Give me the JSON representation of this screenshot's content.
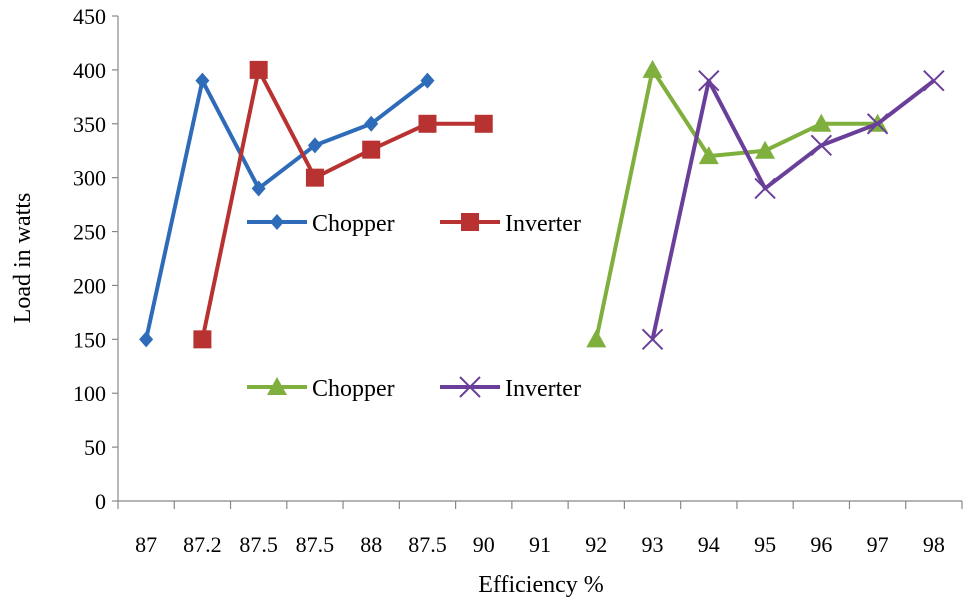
{
  "chart_data": {
    "type": "line",
    "title": "",
    "xlabel": "Efficiency %",
    "ylabel": "Load in watts",
    "categories": [
      "87",
      "87.2",
      "87.5",
      "87.5",
      "88",
      "87.5",
      "90",
      "91",
      "92",
      "93",
      "94",
      "95",
      "96",
      "97",
      "98"
    ],
    "ylim": [
      0,
      450
    ],
    "yticks": [
      0,
      50,
      100,
      150,
      200,
      250,
      300,
      350,
      400,
      450
    ],
    "grid": false,
    "series": [
      {
        "name": "Chopper",
        "color": "#2E6BB8",
        "marker": "diamond",
        "x": [
          0,
          1,
          2,
          3,
          4,
          5
        ],
        "values": [
          150,
          390,
          290,
          330,
          350,
          390
        ]
      },
      {
        "name": "Inverter",
        "color": "#B83232",
        "marker": "square",
        "x": [
          1,
          2,
          3,
          4,
          5,
          6
        ],
        "values": [
          150,
          400,
          300,
          326,
          350,
          350
        ]
      },
      {
        "name": "Chopper",
        "color": "#7FAF3C",
        "marker": "triangle",
        "x": [
          8,
          9,
          10,
          11,
          12,
          13
        ],
        "values": [
          150,
          400,
          320,
          325,
          350,
          350
        ]
      },
      {
        "name": "Inverter",
        "color": "#6A3F9A",
        "marker": "x",
        "x": [
          9,
          10,
          11,
          12,
          13,
          14
        ],
        "values": [
          150,
          390,
          290,
          330,
          350,
          390
        ]
      }
    ],
    "legends": [
      {
        "placement": "middle-left",
        "entries": [
          "Chopper",
          "Inverter"
        ]
      },
      {
        "placement": "lower-left",
        "entries": [
          "Chopper",
          "Inverter"
        ]
      }
    ]
  }
}
